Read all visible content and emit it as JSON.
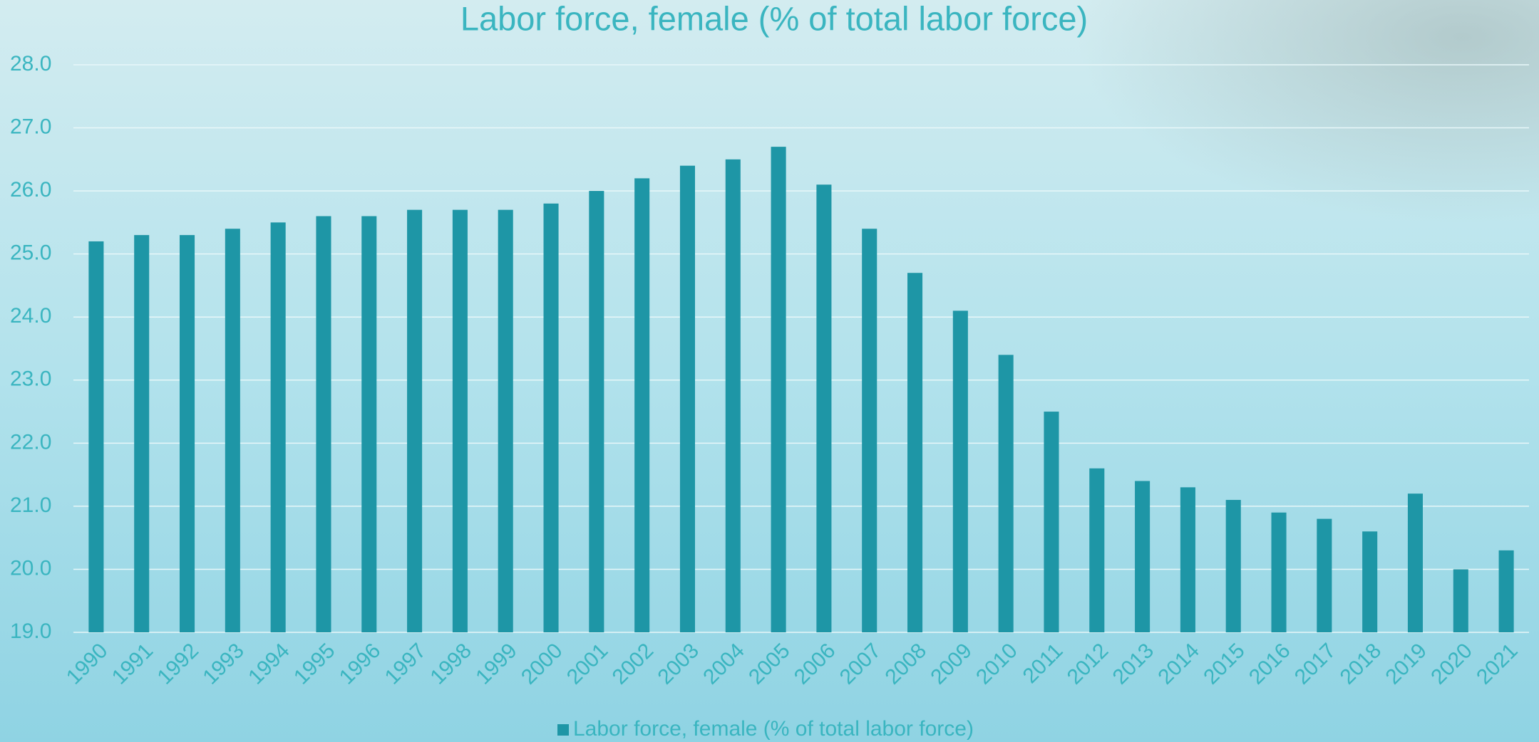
{
  "chart_data": {
    "type": "bar",
    "title": "Labor force, female (% of total labor force)",
    "categories": [
      "1990",
      "1991",
      "1992",
      "1993",
      "1994",
      "1995",
      "1996",
      "1997",
      "1998",
      "1999",
      "2000",
      "2001",
      "2002",
      "2003",
      "2004",
      "2005",
      "2006",
      "2007",
      "2008",
      "2009",
      "2010",
      "2011",
      "2012",
      "2013",
      "2014",
      "2015",
      "2016",
      "2017",
      "2018",
      "2019",
      "2020",
      "2021"
    ],
    "series": [
      {
        "name": "Labor force, female (% of total labor force)",
        "color": "#1e96a6",
        "values": [
          25.2,
          25.3,
          25.3,
          25.4,
          25.5,
          25.6,
          25.6,
          25.7,
          25.7,
          25.7,
          25.8,
          26.0,
          26.2,
          26.4,
          26.5,
          26.7,
          26.1,
          25.4,
          24.7,
          24.1,
          23.4,
          22.5,
          21.6,
          21.4,
          21.3,
          21.1,
          20.9,
          20.8,
          20.6,
          21.2,
          20.0,
          20.3
        ]
      }
    ],
    "ylim": [
      19,
      28
    ],
    "yticks": [
      {
        "value": 19,
        "label": "19.0"
      },
      {
        "value": 20,
        "label": "20.0"
      },
      {
        "value": 21,
        "label": "21.0"
      },
      {
        "value": 22,
        "label": "22.0"
      },
      {
        "value": 23,
        "label": "23.0"
      },
      {
        "value": 24,
        "label": "24.0"
      },
      {
        "value": 25,
        "label": "25.0"
      },
      {
        "value": 26,
        "label": "26.0"
      },
      {
        "value": 27,
        "label": "27.0"
      },
      {
        "value": 28,
        "label": "28.0"
      }
    ],
    "grid": true,
    "legend": "bottom"
  }
}
